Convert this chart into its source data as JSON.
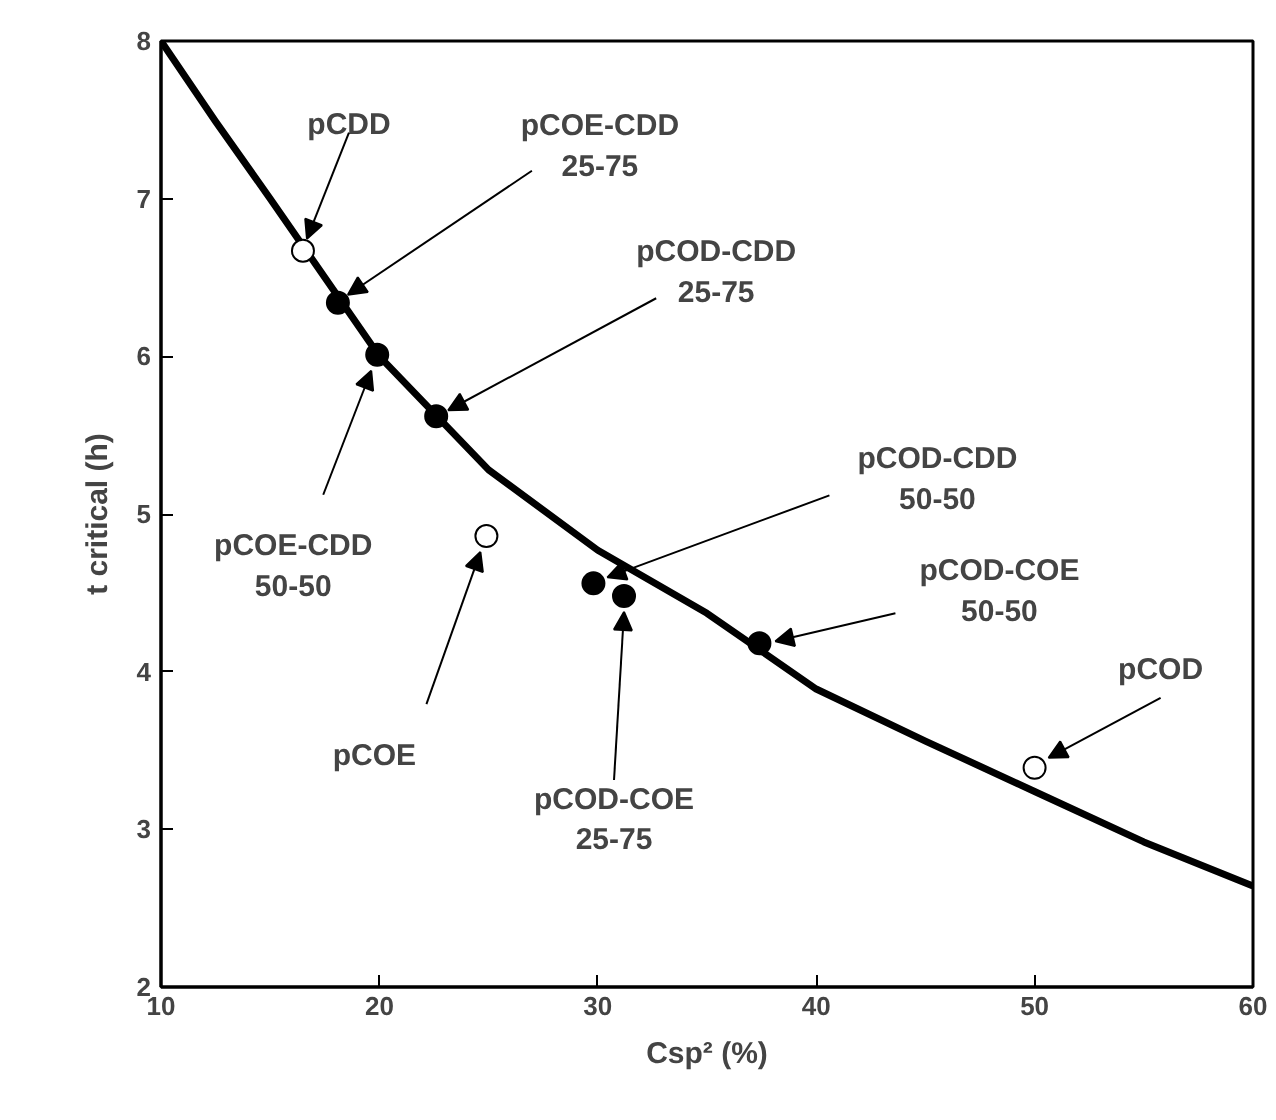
{
  "chart_data": {
    "type": "scatter",
    "xlabel": "Csp² (%)",
    "ylabel": "t critical (h)",
    "xlim": [
      10,
      60
    ],
    "xticks": [
      10,
      20,
      30,
      40,
      50,
      60
    ],
    "ylim": [
      2,
      8
    ],
    "yticks": [
      2,
      3,
      4,
      5,
      6,
      7,
      8
    ],
    "grid": false,
    "marker": "circle",
    "series": [
      {
        "color": "#000000",
        "x": [
          18.1,
          19.9,
          22.6,
          29.8,
          31.2,
          37.4
        ],
        "values": [
          6.34,
          6.01,
          5.62,
          4.56,
          4.48,
          4.18
        ]
      },
      {
        "color": "#ffffff",
        "x": [
          16.5,
          24.9,
          50.0
        ],
        "values": [
          6.67,
          4.86,
          3.39
        ]
      },
      {
        "type": "line",
        "color": "#000000",
        "line_style": "solid",
        "marker": "none",
        "x": [
          10,
          12.5,
          15,
          20,
          25,
          30,
          35,
          40,
          45,
          50,
          55,
          60
        ],
        "values": [
          8.0,
          7.49,
          7.0,
          6.0,
          5.28,
          4.77,
          4.37,
          3.89,
          3.56,
          3.24,
          2.92,
          2.64
        ]
      }
    ],
    "annotations": [
      {
        "text": "pCDD",
        "x": 16.5,
        "y": 6.67
      },
      {
        "text": "pCOE-CDD\n25-75",
        "x": 18.1,
        "y": 6.34
      },
      {
        "text": "pCOD-CDD\n25-75",
        "x": 22.6,
        "y": 5.62
      },
      {
        "text": "pCOE-CDD\n50-50",
        "x": 19.9,
        "y": 6.01
      },
      {
        "text": "pCOE",
        "x": 24.9,
        "y": 4.86
      },
      {
        "text": "pCOD-CDD\n50-50",
        "x": 29.8,
        "y": 4.56
      },
      {
        "text": "pCOD-COE\n25-75",
        "x": 31.2,
        "y": 4.48
      },
      {
        "text": "pCOD-COE\n50-50",
        "x": 37.4,
        "y": 4.18
      },
      {
        "text": "pCOD",
        "x": 50.0,
        "y": 3.39
      }
    ]
  }
}
